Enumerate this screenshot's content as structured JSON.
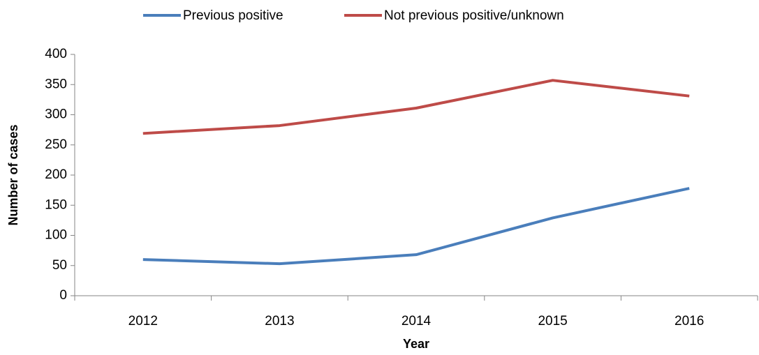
{
  "chart_data": {
    "type": "line",
    "categories": [
      "2012",
      "2013",
      "2014",
      "2015",
      "2016"
    ],
    "series": [
      {
        "name": "Previous positive",
        "color": "#4a7ebb",
        "values": [
          60,
          53,
          68,
          129,
          178
        ]
      },
      {
        "name": "Not previous positive/unknown",
        "color": "#be4b48",
        "values": [
          269,
          282,
          311,
          357,
          331
        ]
      }
    ],
    "x_label": "Year",
    "y_label": "Number of cases",
    "ylim": [
      0,
      400
    ],
    "yticks": [
      0,
      50,
      100,
      150,
      200,
      250,
      300,
      350,
      400
    ],
    "grid": false,
    "legend": "top"
  }
}
